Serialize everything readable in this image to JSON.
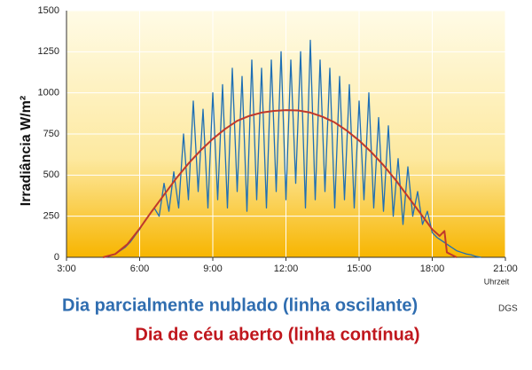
{
  "chart_data": {
    "type": "line",
    "y_label": "Irradiância W/m²",
    "x_label": "Uhrzeit",
    "title": "Dia parcialmente nublado (linha oscilante)",
    "title_color": "#2f6db0",
    "source": "DGS",
    "subtitle": "Dia de céu aberto (linha contínua)",
    "subtitle_color": "#c0171d",
    "xlim": [
      3,
      21
    ],
    "xticks": [
      {
        "value": 3,
        "label": "3:00"
      },
      {
        "value": 6,
        "label": "6:00"
      },
      {
        "value": 9,
        "label": "9:00"
      },
      {
        "value": 12,
        "label": "12:00"
      },
      {
        "value": 15,
        "label": "15:00"
      },
      {
        "value": 18,
        "label": "18:00"
      },
      {
        "value": 21,
        "label": "21:00"
      }
    ],
    "ylim": [
      0,
      1500
    ],
    "yticks": [
      0,
      250,
      500,
      750,
      1000,
      1250,
      1500
    ],
    "grid": true,
    "series": [
      {
        "color": "#1f6fb4",
        "x": [
          4.6,
          4.8,
          5.0,
          5.2,
          5.4,
          5.6,
          5.8,
          6.0,
          6.2,
          6.4,
          6.6,
          6.8,
          7.0,
          7.2,
          7.4,
          7.6,
          7.8,
          8.0,
          8.2,
          8.4,
          8.6,
          8.8,
          9.0,
          9.2,
          9.4,
          9.6,
          9.8,
          10.0,
          10.2,
          10.4,
          10.6,
          10.8,
          11.0,
          11.2,
          11.4,
          11.6,
          11.8,
          12.0,
          12.2,
          12.4,
          12.6,
          12.8,
          13.0,
          13.2,
          13.4,
          13.6,
          13.8,
          14.0,
          14.2,
          14.4,
          14.6,
          14.8,
          15.0,
          15.2,
          15.4,
          15.6,
          15.8,
          16.0,
          16.2,
          16.4,
          16.6,
          16.8,
          17.0,
          17.2,
          17.4,
          17.6,
          17.8,
          18.0,
          18.2,
          18.4,
          18.6,
          18.8,
          19.0,
          19.2,
          19.4,
          19.6,
          19.8,
          20.0
        ],
        "values": [
          0,
          10,
          20,
          40,
          60,
          90,
          130,
          170,
          220,
          260,
          300,
          250,
          450,
          280,
          520,
          300,
          750,
          350,
          950,
          400,
          900,
          300,
          1000,
          350,
          1050,
          300,
          1150,
          400,
          1100,
          280,
          1200,
          350,
          1150,
          300,
          1200,
          400,
          1250,
          350,
          1200,
          450,
          1250,
          300,
          1320,
          350,
          1200,
          400,
          1150,
          300,
          1100,
          350,
          1050,
          300,
          950,
          350,
          1000,
          300,
          850,
          280,
          800,
          250,
          600,
          200,
          550,
          250,
          400,
          200,
          280,
          150,
          120,
          100,
          80,
          60,
          40,
          30,
          20,
          15,
          5,
          0
        ]
      },
      {
        "color": "#c0392b",
        "x": [
          4.5,
          5.0,
          5.5,
          6.0,
          6.5,
          7.0,
          7.5,
          8.0,
          8.5,
          9.0,
          9.5,
          10.0,
          10.5,
          11.0,
          11.5,
          12.0,
          12.5,
          13.0,
          13.5,
          14.0,
          14.5,
          15.0,
          15.5,
          16.0,
          16.5,
          17.0,
          17.5,
          18.0,
          18.3,
          18.5,
          18.6,
          19.0
        ],
        "values": [
          0,
          20,
          80,
          175,
          280,
          380,
          480,
          570,
          650,
          720,
          780,
          830,
          860,
          880,
          890,
          895,
          893,
          880,
          855,
          820,
          770,
          710,
          640,
          560,
          470,
          370,
          270,
          170,
          130,
          160,
          30,
          0
        ]
      }
    ]
  }
}
